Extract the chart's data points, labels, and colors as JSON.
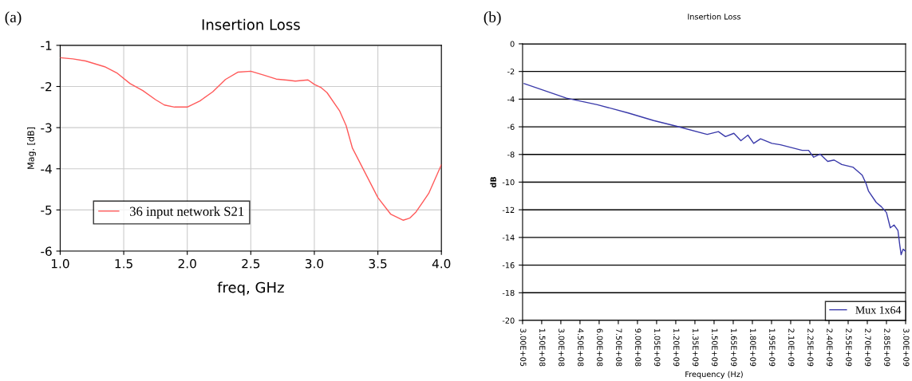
{
  "chart_data": [
    {
      "type": "line",
      "title": "Insertion Loss",
      "xlabel": "freq, GHz",
      "ylabel": "Mag. [dB]",
      "annotations": [
        "(a)"
      ],
      "series": [
        {
          "name": "36 input network S21",
          "color": "#ff5a5a",
          "x": [
            1.0,
            1.1,
            1.2,
            1.35,
            1.45,
            1.55,
            1.65,
            1.75,
            1.82,
            1.9,
            2.0,
            2.1,
            2.2,
            2.3,
            2.4,
            2.5,
            2.6,
            2.7,
            2.8,
            2.85,
            2.95,
            3.0,
            3.05,
            3.1,
            3.2,
            3.25,
            3.3,
            3.4,
            3.5,
            3.6,
            3.7,
            3.75,
            3.8,
            3.9,
            4.0
          ],
          "values": [
            -1.3,
            -1.33,
            -1.38,
            -1.52,
            -1.68,
            -1.93,
            -2.1,
            -2.32,
            -2.45,
            -2.5,
            -2.5,
            -2.35,
            -2.13,
            -1.83,
            -1.65,
            -1.63,
            -1.72,
            -1.82,
            -1.85,
            -1.87,
            -1.84,
            -1.95,
            -2.02,
            -2.15,
            -2.6,
            -2.95,
            -3.5,
            -4.1,
            -4.7,
            -5.1,
            -5.25,
            -5.2,
            -5.05,
            -4.6,
            -3.9
          ]
        }
      ],
      "xlim": [
        1.0,
        4.0
      ],
      "xticks": [
        {
          "value": 1.0,
          "label": "1.0"
        },
        {
          "value": 1.5,
          "label": "1.5"
        },
        {
          "value": 2.0,
          "label": "2.0"
        },
        {
          "value": 2.5,
          "label": "2.5"
        },
        {
          "value": 3.0,
          "label": "3.0"
        },
        {
          "value": 3.5,
          "label": "3.5"
        },
        {
          "value": 4.0,
          "label": "4.0"
        }
      ],
      "ylim": [
        -6,
        -1
      ],
      "yticks": [
        -6,
        -5,
        -4,
        -3,
        -2,
        -1
      ],
      "grid": true,
      "legend": "bottom left",
      "marker": "none",
      "line_style": "solid"
    },
    {
      "type": "line",
      "title": "Insertion Loss",
      "xlabel": "Frequency (Hz)",
      "ylabel": "dB",
      "annotations": [
        "(b)"
      ],
      "series": [
        {
          "name": "Mux 1x64",
          "color": "#3a3aaa",
          "x": [
            12500000.0,
            344000000.0,
            586000000.0,
            828000000.0,
            1027000000.0,
            1203000000.0,
            1446000000.0,
            1534000000.0,
            1589000000.0,
            1655000000.0,
            1710000000.0,
            1765000000.0,
            1810000000.0,
            1864000000.0,
            1953000000.0,
            2020000000.0,
            2190000000.0,
            2240000000.0,
            2280000000.0,
            2330000000.0,
            2390000000.0,
            2440000000.0,
            2500000000.0,
            2590000000.0,
            2660000000.0,
            2690000000.0,
            2710000000.0,
            2770000000.0,
            2810000000.0,
            2850000000.0,
            2880000000.0,
            2910000000.0,
            2940000000.0,
            2955000000.0,
            2965000000.0,
            2980000000.0,
            3000000000.0
          ],
          "values": [
            -2.88,
            -3.93,
            -4.4,
            -5.0,
            -5.55,
            -5.95,
            -6.55,
            -6.35,
            -6.71,
            -6.47,
            -7.0,
            -6.6,
            -7.2,
            -6.87,
            -7.2,
            -7.3,
            -7.7,
            -7.7,
            -8.2,
            -7.97,
            -8.5,
            -8.4,
            -8.73,
            -8.93,
            -9.5,
            -10.1,
            -10.66,
            -11.47,
            -11.78,
            -12.2,
            -13.3,
            -13.1,
            -13.5,
            -14.6,
            -15.25,
            -14.85,
            -15.0
          ]
        }
      ],
      "xlim": [
        300000,
        3000000000
      ],
      "xticks": [
        {
          "value": 300000,
          "label": "3.00E+05"
        },
        {
          "value": 150000000,
          "label": "1.50E+08"
        },
        {
          "value": 300000000,
          "label": "3.00E+08"
        },
        {
          "value": 450000000,
          "label": "4.50E+08"
        },
        {
          "value": 600000000,
          "label": "6.00E+08"
        },
        {
          "value": 750000000,
          "label": "7.50E+08"
        },
        {
          "value": 900000000,
          "label": "9.00E+08"
        },
        {
          "value": 1050000000,
          "label": "1.05E+09"
        },
        {
          "value": 1200000000,
          "label": "1.20E+09"
        },
        {
          "value": 1350000000,
          "label": "1.35E+09"
        },
        {
          "value": 1500000000,
          "label": "1.50E+09"
        },
        {
          "value": 1650000000,
          "label": "1.65E+09"
        },
        {
          "value": 1800000000,
          "label": "1.80E+09"
        },
        {
          "value": 1950000000,
          "label": "1.95E+09"
        },
        {
          "value": 2100000000,
          "label": "2.10E+09"
        },
        {
          "value": 2250000000,
          "label": "2.25E+09"
        },
        {
          "value": 2400000000,
          "label": "2.40E+09"
        },
        {
          "value": 2550000000,
          "label": "2.55E+09"
        },
        {
          "value": 2700000000,
          "label": "2.70E+09"
        },
        {
          "value": 2850000000,
          "label": "2.85E+09"
        },
        {
          "value": 3000000000,
          "label": "3.00E+09"
        }
      ],
      "ylim": [
        -20,
        0
      ],
      "yticks": [
        -20,
        -18,
        -16,
        -14,
        -12,
        -10,
        -8,
        -6,
        -4,
        -2,
        0
      ],
      "grid": "y",
      "legend": "bottom right",
      "marker": "none",
      "line_style": "solid"
    }
  ]
}
